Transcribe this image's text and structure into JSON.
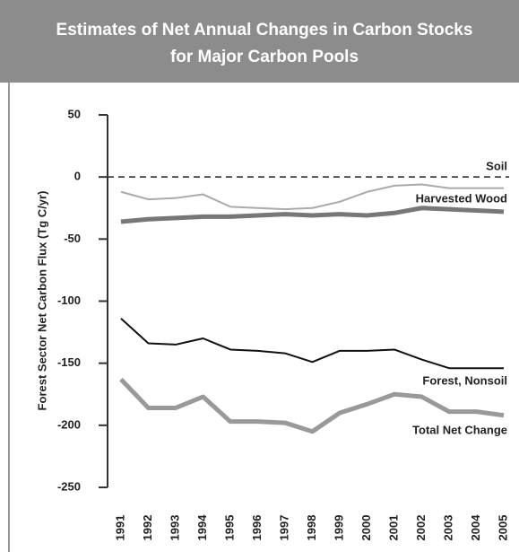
{
  "chart_data": {
    "type": "line",
    "title": [
      "Estimates of Net Annual Changes in Carbon Stocks",
      "for Major Carbon Pools"
    ],
    "y_label": "Forest Sector Net Carbon Flux (Tg C/yr)",
    "categories": [
      "1991",
      "1992",
      "1993",
      "1994",
      "1995",
      "1996",
      "1997",
      "1998",
      "1999",
      "2000",
      "2001",
      "2002",
      "2003",
      "2004",
      "2005"
    ],
    "series": [
      {
        "name": "Soil",
        "color": "#aaaaaa",
        "values": [
          -12,
          -18,
          -17,
          -14,
          -24,
          -25,
          -26,
          -25,
          -20,
          -12,
          -7,
          -6,
          -9,
          -9,
          -9
        ]
      },
      {
        "name": "Harvested Wood",
        "color": "#777777",
        "values": [
          -36,
          -34,
          -33,
          -32,
          -32,
          -31,
          -30,
          -31,
          -30,
          -31,
          -29,
          -25,
          -26,
          -27,
          -28
        ]
      },
      {
        "name": "Forest, Nonsoil",
        "color": "#111111",
        "values": [
          -114,
          -134,
          -135,
          -130,
          -139,
          -140,
          -142,
          -149,
          -140,
          -140,
          -139,
          -147,
          -154,
          -154,
          -154
        ]
      },
      {
        "name": "Total Net Change",
        "color": "#999999",
        "values": [
          -163,
          -186,
          -186,
          -177,
          -197,
          -197,
          -198,
          -205,
          -190,
          -183,
          -175,
          -177,
          -189,
          -189,
          -192
        ]
      }
    ],
    "ylim": [
      -250,
      50
    ],
    "yticks": [
      50,
      0,
      -50,
      -100,
      -150,
      -200,
      -250
    ],
    "reference_line": 0
  }
}
